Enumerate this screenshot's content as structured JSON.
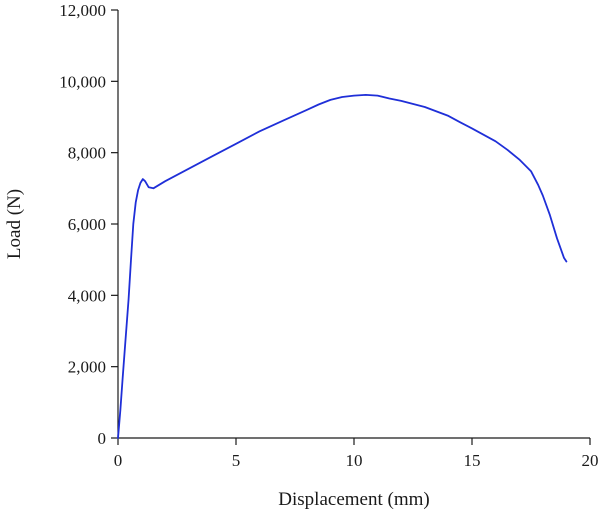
{
  "chart_data": {
    "type": "line",
    "title": "",
    "xlabel": "Displacement (mm)",
    "ylabel": "Load (N)",
    "xlim": [
      0,
      20
    ],
    "ylim": [
      0,
      12000
    ],
    "grid": false,
    "x_ticks": [
      0,
      5,
      10,
      15,
      20
    ],
    "x_tick_labels": [
      "0",
      "5",
      "10",
      "15",
      "20"
    ],
    "y_ticks": [
      0,
      2000,
      4000,
      6000,
      8000,
      10000,
      12000
    ],
    "y_tick_labels": [
      "0",
      "2,000",
      "4,000",
      "6,000",
      "8,000",
      "10,000",
      "12,000"
    ],
    "series": [
      {
        "color": "#1f2fd8",
        "points": [
          [
            0.0,
            0
          ],
          [
            0.1,
            800
          ],
          [
            0.2,
            1700
          ],
          [
            0.3,
            2600
          ],
          [
            0.45,
            3900
          ],
          [
            0.55,
            5000
          ],
          [
            0.65,
            6000
          ],
          [
            0.75,
            6600
          ],
          [
            0.85,
            6950
          ],
          [
            0.95,
            7150
          ],
          [
            1.05,
            7260
          ],
          [
            1.15,
            7200
          ],
          [
            1.3,
            7030
          ],
          [
            1.5,
            7000
          ],
          [
            2.0,
            7200
          ],
          [
            3.0,
            7550
          ],
          [
            4.0,
            7900
          ],
          [
            5.0,
            8250
          ],
          [
            6.0,
            8600
          ],
          [
            7.0,
            8900
          ],
          [
            8.0,
            9200
          ],
          [
            8.5,
            9350
          ],
          [
            9.0,
            9480
          ],
          [
            9.5,
            9560
          ],
          [
            10.0,
            9600
          ],
          [
            10.5,
            9620
          ],
          [
            11.0,
            9600
          ],
          [
            11.5,
            9520
          ],
          [
            12.0,
            9450
          ],
          [
            13.0,
            9280
          ],
          [
            14.0,
            9030
          ],
          [
            14.5,
            8850
          ],
          [
            15.0,
            8680
          ],
          [
            16.0,
            8320
          ],
          [
            16.5,
            8080
          ],
          [
            17.0,
            7810
          ],
          [
            17.5,
            7480
          ],
          [
            17.8,
            7100
          ],
          [
            18.0,
            6800
          ],
          [
            18.3,
            6250
          ],
          [
            18.6,
            5600
          ],
          [
            18.9,
            5050
          ],
          [
            19.0,
            4950
          ]
        ]
      }
    ]
  }
}
